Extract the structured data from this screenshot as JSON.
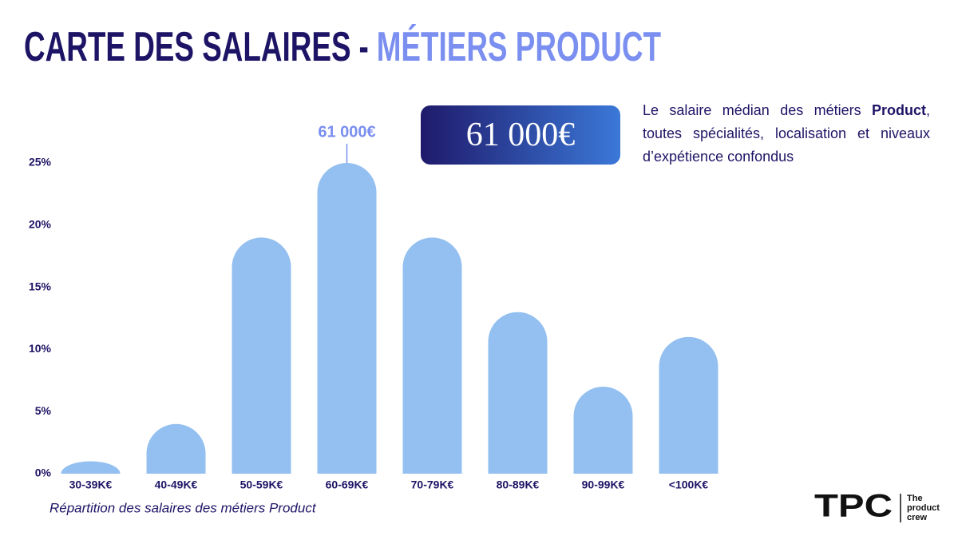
{
  "chart_data": {
    "type": "bar",
    "title": "CARTE DES SALAIRES",
    "title_separator": "-",
    "title_accent": "MÉTIERS PRODUCT",
    "categories": [
      "30-39K€",
      "40-49K€",
      "50-59K€",
      "60-69K€",
      "70-79K€",
      "80-89K€",
      "90-99K€",
      "<100K€"
    ],
    "values": [
      1,
      4,
      19,
      25,
      19,
      13,
      7,
      11
    ],
    "color": "#93c0f0",
    "ylim": [
      0,
      25
    ],
    "yticks": [
      {
        "value": 0,
        "label": "0%"
      },
      {
        "value": 5,
        "label": "5%"
      },
      {
        "value": 10,
        "label": "10%"
      },
      {
        "value": 15,
        "label": "15%"
      },
      {
        "value": 20,
        "label": "20%"
      },
      {
        "value": 25,
        "label": "25%"
      }
    ],
    "grid": false,
    "annotation": "61 000€",
    "caption": "Répartition des salaires des métiers Product"
  },
  "median_box": "61 000€",
  "description": {
    "before": "Le salaire médian des  métiers ",
    "bold": "Product",
    "after": ", toutes spécialités, localisation et niveaux d’expétience confondus"
  },
  "logo": {
    "mark": "TPC",
    "line1": "The",
    "line2": "product",
    "line3": "crew"
  }
}
